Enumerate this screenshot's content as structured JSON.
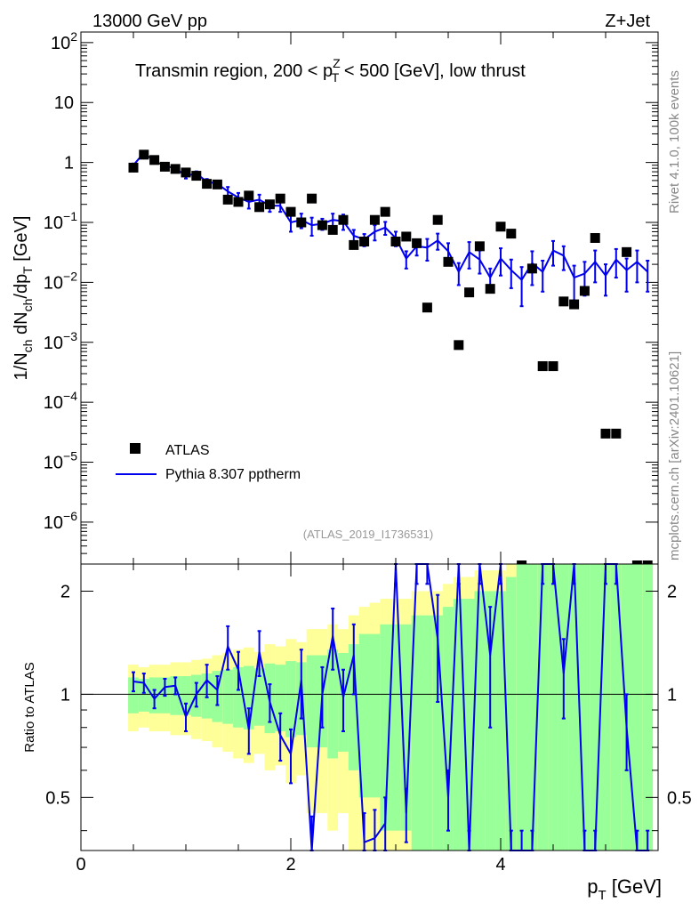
{
  "header": {
    "left": "13000 GeV pp",
    "right": "Z+Jet"
  },
  "main_plot": {
    "title": "Transmin region, 200 < p_T^Z < 500 [GeV], low thrust",
    "title_parts": {
      "before": "Transmin region, 200 < p",
      "sup": "Z",
      "sub": "T",
      "after": " < 500 [GeV], low thrust"
    },
    "ylabel": "1/N_ch dN_ch/dp_T [GeV]",
    "ylabel_parts": {
      "a": "1/N",
      "a_sub": "ch",
      "b": " dN",
      "b_sub": "ch",
      "c": "/dp",
      "c_sub": "T",
      "d": " [GeV]"
    },
    "analysis_id": "(ATLAS_2019_I1736531)",
    "y_ticks": [
      {
        "base": "10",
        "exp": "2",
        "value": 100
      },
      {
        "base": "10",
        "exp": "",
        "value": 10
      },
      {
        "base": "1",
        "exp": "",
        "value": 1
      },
      {
        "base": "10",
        "exp": "−1",
        "value": 0.1
      },
      {
        "base": "10",
        "exp": "−2",
        "value": 0.01
      },
      {
        "base": "10",
        "exp": "−3",
        "value": 0.001
      },
      {
        "base": "10",
        "exp": "−4",
        "value": 0.0001
      },
      {
        "base": "10",
        "exp": "−5",
        "value": 1e-05
      },
      {
        "base": "10",
        "exp": "−6",
        "value": 1e-06
      }
    ],
    "legend": {
      "data_label": "ATLAS",
      "mc_label": "Pythia 8.307 pptherm"
    }
  },
  "ratio_plot": {
    "ylabel": "Ratio to ATLAS",
    "y_ticks": [
      {
        "label": "0.5",
        "value": 0.5
      },
      {
        "label": "1",
        "value": 1
      },
      {
        "label": "2",
        "value": 2
      }
    ]
  },
  "x_axis": {
    "label": "p_T [GeV]",
    "label_parts": {
      "a": "p",
      "sub": "T",
      "b": " [GeV]"
    },
    "ticks": [
      {
        "label": "0",
        "value": 0
      },
      {
        "label": "2",
        "value": 2
      },
      {
        "label": "4",
        "value": 4
      }
    ]
  },
  "sidebar": {
    "rivet": "Rivet 4.1.0,  100k events",
    "mcplots": "mcplots.cern.ch [arXiv:2401.10621]"
  },
  "colors": {
    "mc_line": "#0000ee",
    "band_inner": "#99ff99",
    "band_outer": "#ffff99",
    "marker": "#000000"
  },
  "chart_data": {
    "type": "scatter",
    "x_range": [
      0,
      5.5
    ],
    "y_range_main": [
      2e-07,
      150
    ],
    "y_range_ratio": [
      0.35,
      2.4
    ],
    "y_scale": "log",
    "x": [
      0.5,
      0.6,
      0.7,
      0.8,
      0.9,
      1.0,
      1.1,
      1.2,
      1.3,
      1.4,
      1.5,
      1.6,
      1.7,
      1.8,
      1.9,
      2.0,
      2.1,
      2.2,
      2.3,
      2.4,
      2.5,
      2.6,
      2.7,
      2.8,
      2.9,
      3.0,
      3.1,
      3.2,
      3.3,
      3.4,
      3.5,
      3.6,
      3.7,
      3.8,
      3.9,
      4.0,
      4.1,
      4.2,
      4.3,
      4.4,
      4.5,
      4.6,
      4.7,
      4.8,
      4.9,
      5.0,
      5.1,
      5.2,
      5.3,
      5.4
    ],
    "series": [
      {
        "name": "ATLAS",
        "values": [
          0.82,
          1.35,
          1.1,
          0.85,
          0.78,
          0.68,
          0.6,
          0.44,
          0.43,
          0.24,
          0.22,
          0.28,
          0.18,
          0.2,
          0.25,
          0.15,
          0.1,
          0.25,
          0.09,
          0.075,
          0.11,
          0.042,
          0.048,
          0.11,
          0.15,
          0.048,
          0.058,
          0.045,
          0.0038,
          0.11,
          0.022,
          0.0009,
          0.0068,
          0.04,
          0.0078,
          0.085,
          0.065,
          null,
          0.017,
          0.0004,
          0.0004,
          0.0048,
          0.0043,
          0.0072,
          0.055,
          3e-05,
          3e-05,
          0.032,
          null,
          null
        ]
      },
      {
        "name": "Pythia 8.307 pptherm",
        "values": [
          0.9,
          1.45,
          1.05,
          0.88,
          0.8,
          0.6,
          0.65,
          0.48,
          0.44,
          0.33,
          0.26,
          0.22,
          0.24,
          0.19,
          0.19,
          0.1,
          0.11,
          0.09,
          0.095,
          0.11,
          0.105,
          0.06,
          0.052,
          0.07,
          0.082,
          0.055,
          0.025,
          0.04,
          0.038,
          0.05,
          0.033,
          0.015,
          0.032,
          0.024,
          0.012,
          0.025,
          0.016,
          0.011,
          0.021,
          0.015,
          0.034,
          0.028,
          0.012,
          0.014,
          0.022,
          0.013,
          0.024,
          0.016,
          0.022,
          0.015
        ],
        "errors": [
          0.06,
          0.08,
          0.06,
          0.05,
          0.05,
          0.06,
          0.06,
          0.05,
          0.05,
          0.06,
          0.05,
          0.05,
          0.05,
          0.04,
          0.04,
          0.03,
          0.03,
          0.03,
          0.02,
          0.03,
          0.03,
          0.015,
          0.012,
          0.02,
          0.02,
          0.015,
          0.008,
          0.012,
          0.015,
          0.015,
          0.012,
          0.006,
          0.015,
          0.01,
          0.005,
          0.012,
          0.008,
          0.007,
          0.012,
          0.008,
          0.015,
          0.012,
          0.007,
          0.008,
          0.012,
          0.007,
          0.012,
          0.009,
          0.012,
          0.008
        ]
      }
    ],
    "ratio": {
      "values": [
        1.09,
        1.08,
        0.97,
        1.05,
        1.06,
        0.86,
        1.0,
        1.1,
        1.03,
        1.38,
        1.18,
        0.79,
        1.33,
        0.95,
        0.76,
        0.67,
        1.1,
        0.34,
        1.0,
        1.48,
        0.98,
        1.3,
        0.37,
        0.38,
        0.42,
        2.6,
        0.45,
        2.6,
        2.6,
        1.45,
        0.5,
        2.6,
        0.3,
        2.6,
        1.3,
        2.6,
        0.3,
        0.3,
        0.3,
        2.6,
        2.6,
        1.15,
        2.6,
        0.3,
        0.3,
        2.6,
        2.6,
        0.8,
        0.3,
        0.3
      ],
      "errors": [
        0.07,
        0.07,
        0.06,
        0.06,
        0.06,
        0.08,
        0.08,
        0.12,
        0.1,
        0.2,
        0.15,
        0.12,
        0.2,
        0.12,
        0.12,
        0.12,
        0.25,
        0.1,
        0.2,
        0.3,
        0.2,
        0.3,
        0.08,
        0.08,
        0.08,
        0.5,
        0.08,
        0.5,
        0.5,
        0.5,
        0.1,
        0.5,
        0.1,
        0.5,
        0.5,
        0.5,
        0.1,
        0.1,
        0.1,
        0.5,
        0.5,
        0.3,
        0.5,
        0.1,
        0.1,
        0.5,
        0.5,
        0.2,
        0.1,
        0.1
      ],
      "band_inner_half": [
        0.12,
        0.11,
        0.12,
        0.12,
        0.13,
        0.13,
        0.14,
        0.15,
        0.17,
        0.18,
        0.2,
        0.21,
        0.19,
        0.23,
        0.22,
        0.25,
        0.24,
        0.3,
        0.3,
        0.35,
        0.32,
        0.4,
        0.5,
        0.5,
        0.6,
        0.6,
        0.6,
        0.7,
        0.7,
        0.7,
        0.8,
        0.9,
        0.9,
        1.0,
        1.0,
        1.0,
        1.2,
        2,
        2,
        2,
        2,
        2,
        2,
        2,
        2,
        2,
        2,
        2,
        2,
        2
      ],
      "band_outer_half": [
        0.22,
        0.2,
        0.22,
        0.22,
        0.24,
        0.24,
        0.26,
        0.27,
        0.3,
        0.32,
        0.35,
        0.37,
        0.33,
        0.4,
        0.38,
        0.45,
        0.42,
        0.55,
        0.55,
        0.6,
        0.55,
        0.7,
        0.8,
        0.85,
        0.9,
        0.9,
        0.9,
        1.0,
        1.0,
        1.0,
        1.1,
        1.2,
        1.2,
        1.3,
        1.3,
        1.3,
        1.5,
        2,
        2,
        2,
        2,
        2,
        2,
        2,
        2,
        2,
        2,
        2,
        2,
        2
      ]
    }
  }
}
